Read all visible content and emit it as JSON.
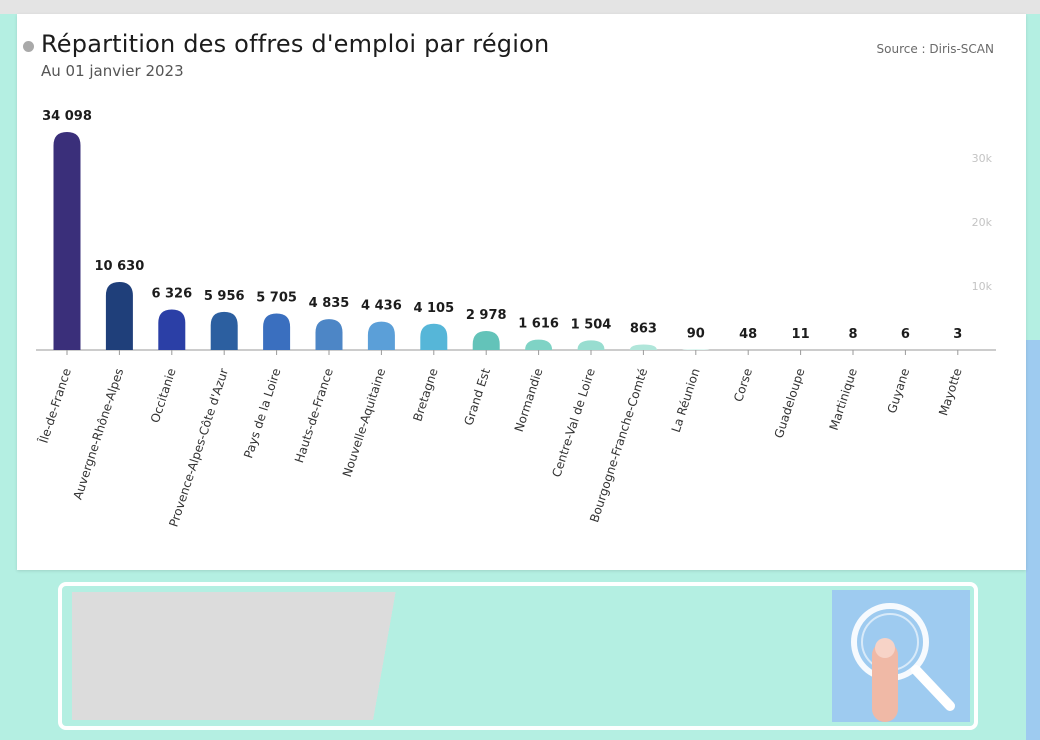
{
  "header": {
    "title": "Répartition des offres d'emploi par région",
    "subtitle": "Au 01 janvier 2023",
    "source": "Source : Diris-SCAN"
  },
  "colors": {
    "background": "#b4efe2",
    "card": "#ffffff",
    "search_button": "#9ecbf0"
  },
  "search": {
    "placeholder": "",
    "button_icon": "magnifier-icon"
  },
  "chart_data": {
    "type": "bar",
    "title": "Répartition des offres d'emploi par région",
    "subtitle": "Au 01 janvier 2023",
    "xlabel": "",
    "ylabel": "",
    "categories": [
      "Île-de-France",
      "Auvergne-Rhône-Alpes",
      "Occitanie",
      "Provence-Alpes-Côte d'Azur",
      "Pays de la Loire",
      "Hauts-de-France",
      "Nouvelle-Aquitaine",
      "Bretagne",
      "Grand Est",
      "Normandie",
      "Centre-Val de Loire",
      "Bourgogne-Franche-Comté",
      "La Réunion",
      "Corse",
      "Guadeloupe",
      "Martinique",
      "Guyane",
      "Mayotte"
    ],
    "values": [
      34098,
      10630,
      6326,
      5956,
      5705,
      4835,
      4436,
      4105,
      2978,
      1616,
      1504,
      863,
      90,
      48,
      11,
      8,
      6,
      3
    ],
    "value_labels": [
      "34 098",
      "10 630",
      "6 326",
      "5 956",
      "5 705",
      "4 835",
      "4 436",
      "4 105",
      "2 978",
      "1 616",
      "1 504",
      "863",
      "90",
      "48",
      "11",
      "8",
      "6",
      "3"
    ],
    "bar_colors": [
      "#3a2f7a",
      "#1f3f7a",
      "#2b3fa6",
      "#2c5fa0",
      "#3a6fbf",
      "#4d86c6",
      "#5b9fd8",
      "#56b6d8",
      "#63c3b9",
      "#7fd3c5",
      "#98ddd0",
      "#b0e6da",
      "#c8efe6",
      "#d6f3ec",
      "#dff6f0",
      "#e6f8f3",
      "#ecfaf6",
      "#f1fbf8"
    ],
    "y_ticks": [
      {
        "value": 10000,
        "label": "10k"
      },
      {
        "value": 20000,
        "label": "20k"
      },
      {
        "value": 30000,
        "label": "30k"
      }
    ],
    "ylim": [
      0,
      34098
    ],
    "grid": false,
    "legend": "none"
  }
}
